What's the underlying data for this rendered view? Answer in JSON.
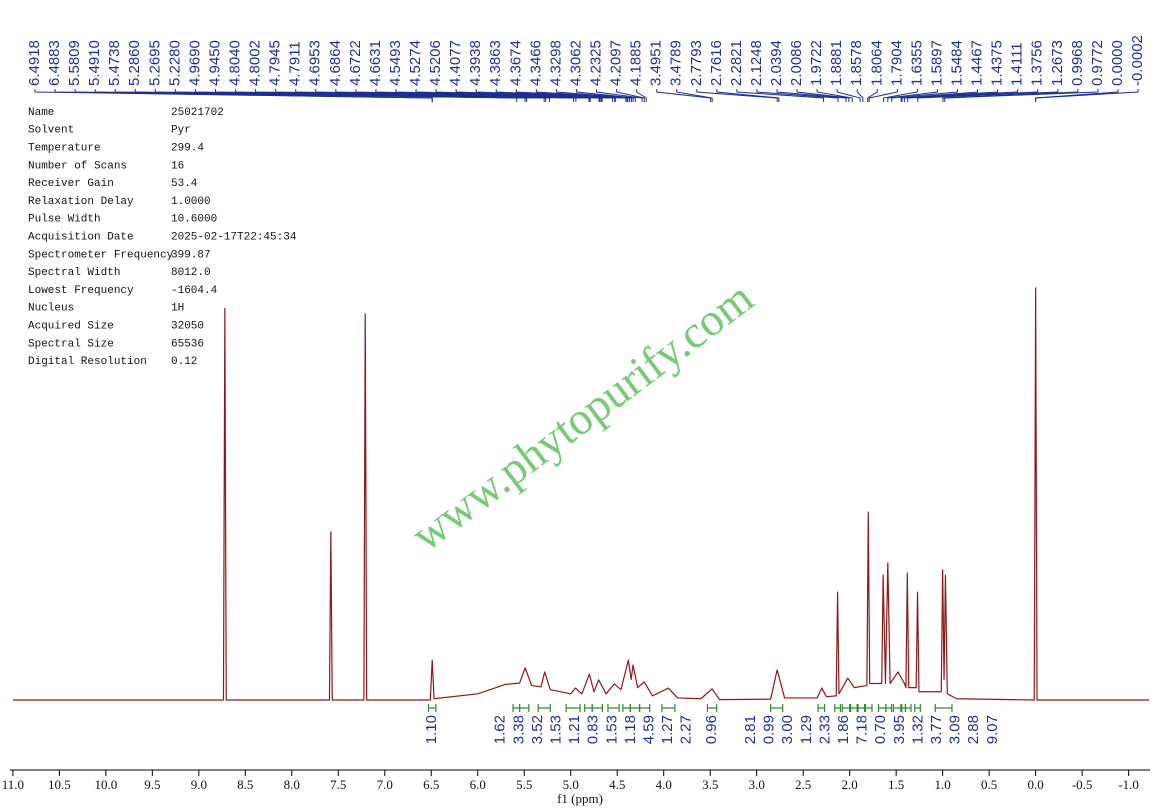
{
  "parameters": {
    "rows": [
      [
        "Name",
        "25021702"
      ],
      [
        "Solvent",
        "Pyr"
      ],
      [
        "Temperature",
        "299.4"
      ],
      [
        "Number of Scans",
        "16"
      ],
      [
        "Receiver Gain",
        "53.4"
      ],
      [
        "Relaxation Delay",
        "1.0000"
      ],
      [
        "Pulse Width",
        "10.6000"
      ],
      [
        "Acquisition Date",
        "2025-02-17T22:45:34"
      ],
      [
        "Spectrometer Frequency",
        "399.87"
      ],
      [
        "Spectral Width",
        "8012.0"
      ],
      [
        "Lowest Frequency",
        "-1604.4"
      ],
      [
        "Nucleus",
        "1H"
      ],
      [
        "Acquired Size",
        "32050"
      ],
      [
        "Spectral Size",
        "65536"
      ],
      [
        "Digital Resolution",
        "0.12"
      ]
    ]
  },
  "watermark": "www.phytopurify.com",
  "chart_data": {
    "type": "line",
    "x_label": "f1 (ppm)",
    "color": "#8b1a1a",
    "x": [
      11.0,
      8.735,
      8.72,
      8.705,
      7.595,
      7.58,
      7.565,
      7.225,
      7.21,
      7.195,
      6.51,
      6.49,
      6.47,
      6.0,
      5.7,
      5.55,
      5.49,
      5.42,
      5.32,
      5.28,
      5.22,
      5.0,
      4.95,
      4.88,
      4.8,
      4.75,
      4.7,
      4.62,
      4.53,
      4.46,
      4.38,
      4.35,
      4.33,
      4.28,
      4.21,
      4.12,
      3.95,
      3.85,
      3.6,
      3.48,
      3.4,
      2.85,
      2.78,
      2.7,
      2.35,
      2.3,
      2.25,
      2.145,
      2.13,
      2.115,
      2.02,
      1.95,
      1.815,
      1.8,
      1.785,
      1.655,
      1.64,
      1.615,
      1.59,
      1.565,
      1.48,
      1.41,
      1.395,
      1.38,
      1.365,
      1.285,
      1.27,
      1.255,
      1.015,
      1.0,
      0.985,
      0.97,
      0.95,
      0.85,
      0.015,
      0.0,
      -0.015,
      -1.22
    ],
    "values": [
      0,
      0,
      95.1,
      0,
      0,
      40.8,
      0,
      0,
      93.7,
      0,
      0,
      9.7,
      0.3,
      1.5,
      3.8,
      4.1,
      7.8,
      3.5,
      3.2,
      6.8,
      2.5,
      1.5,
      2.9,
      1.5,
      6.3,
      2,
      4.9,
      1.5,
      3.9,
      2.5,
      9.7,
      5,
      8.5,
      3,
      4.4,
      1,
      2.9,
      0.5,
      0.3,
      2.7,
      0.1,
      0.2,
      7.3,
      0.5,
      0.5,
      2.9,
      0.8,
      1,
      26.2,
      1.5,
      5.3,
      3,
      3.5,
      45.6,
      4,
      4,
      30.3,
      4,
      33.3,
      4,
      6.8,
      4,
      3,
      30.8,
      3,
      3,
      26.2,
      2,
      2,
      31.6,
      5,
      30.3,
      1.5,
      0.3,
      0,
      100,
      0,
      0
    ],
    "xlim": [
      11.02,
      -1.23
    ],
    "ylim": [
      0,
      100
    ],
    "xticks": [
      {
        "value": 11,
        "label": "11.0"
      },
      10.5,
      {
        "value": 10,
        "label": "10.0"
      },
      9.5,
      {
        "value": 9,
        "label": "9.0"
      },
      8.5,
      {
        "value": 8,
        "label": "8.0"
      },
      7.5,
      {
        "value": 7,
        "label": "7.0"
      },
      6.5,
      {
        "value": 6,
        "label": "6.0"
      },
      5.5,
      {
        "value": 5,
        "label": "5.0"
      },
      4.5,
      {
        "value": 4,
        "label": "4.0"
      },
      3.5,
      {
        "value": 3,
        "label": "3.0"
      },
      2.5,
      {
        "value": 2,
        "label": "2.0"
      },
      1.5,
      {
        "value": 1,
        "label": "1.0"
      },
      0.5,
      {
        "value": 0,
        "label": "0.0"
      },
      -0.5,
      {
        "value": -1,
        "label": "-1.0"
      }
    ],
    "peaks": [
      6.4918,
      6.4883,
      5.5809,
      {
        "value": 5.491,
        "label": "5.4910"
      },
      5.4738,
      {
        "value": 5.286,
        "label": "5.2860"
      },
      5.2695,
      {
        "value": 5.228,
        "label": "5.2280"
      },
      {
        "value": 4.969,
        "label": "4.9690"
      },
      {
        "value": 4.945,
        "label": "4.9450"
      },
      {
        "value": 4.804,
        "label": "4.8040"
      },
      4.8002,
      4.7945,
      4.7911,
      4.6953,
      4.6864,
      4.6722,
      4.6631,
      4.5493,
      4.5274,
      4.5206,
      4.4077,
      4.3938,
      4.3863,
      4.3674,
      4.3466,
      4.3298,
      4.3062,
      4.2325,
      4.2097,
      4.1885,
      3.4951,
      3.4789,
      2.7793,
      2.7616,
      2.2821,
      2.1248,
      2.0394,
      2.0086,
      1.9722,
      1.8881,
      1.8578,
      1.8064,
      1.7904,
      1.6355,
      1.5897,
      1.5484,
      1.4467,
      1.4375,
      1.4111,
      1.3756,
      1.2673,
      0.9968,
      0.9772,
      {
        "value": 0,
        "label": "0.0000"
      },
      -0.0002
    ],
    "integrals": {
      "values": [
        1.1,
        1.62,
        3.38,
        3.52,
        1.53,
        1.21,
        0.83,
        1.53,
        1.18,
        4.59,
        1.27,
        2.27,
        0.96,
        2.81,
        0.99,
        3,
        1.29,
        2.33,
        1.86,
        7.18,
        0.7,
        3.95,
        1.32,
        3.77,
        3.09,
        2.88,
        9.07
      ],
      "value_labels": [
        "1.10",
        "1.62",
        "3.38",
        "3.52",
        "1.53",
        "1.21",
        "0.83",
        "1.53",
        "1.18",
        "4.59",
        "1.27",
        "2.27",
        "0.96",
        "2.81",
        "0.99",
        "3.00",
        "1.29",
        "2.33",
        "1.86",
        "7.18",
        "0.70",
        "3.95",
        "1.32",
        "3.77",
        "3.09",
        "2.88",
        "9.07"
      ],
      "ranges": [
        [
          6.53,
          6.45
        ],
        [
          5.62,
          5.55
        ],
        [
          5.55,
          5.45
        ],
        [
          5.35,
          5.22
        ],
        [
          5.05,
          4.9
        ],
        [
          4.85,
          4.77
        ],
        [
          4.77,
          4.66
        ],
        [
          4.6,
          4.48
        ],
        [
          4.44,
          4.36
        ],
        [
          4.36,
          4.26
        ],
        [
          4.26,
          4.15
        ],
        [
          4.02,
          3.88
        ],
        [
          3.53,
          3.43
        ],
        [
          2.85,
          2.72
        ],
        [
          2.34,
          2.27
        ],
        [
          2.16,
          2.1
        ],
        [
          2.08,
          2.0
        ],
        [
          1.99,
          1.92
        ],
        [
          1.91,
          1.84
        ],
        [
          1.83,
          1.76
        ],
        [
          1.69,
          1.61
        ],
        [
          1.61,
          1.55
        ],
        [
          1.53,
          1.45
        ],
        [
          1.44,
          1.4
        ],
        [
          1.4,
          1.34
        ],
        [
          1.3,
          1.24
        ],
        [
          1.08,
          0.9
        ]
      ]
    }
  }
}
